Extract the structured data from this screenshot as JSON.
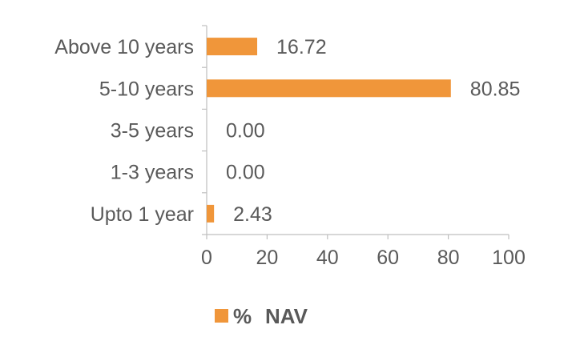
{
  "chart_data": {
    "type": "bar",
    "orientation": "horizontal",
    "categories": [
      "Above 10 years",
      "5-10 years",
      "3-5 years",
      "1-3 years",
      "Upto 1 year"
    ],
    "series": [
      {
        "name": "% NAV",
        "values": [
          16.72,
          80.85,
          0.0,
          0.0,
          2.43
        ],
        "color": "#f0963a"
      }
    ],
    "data_labels": [
      "16.72",
      "80.85",
      "0.00",
      "0.00",
      "2.43"
    ],
    "xlim": [
      0,
      100
    ],
    "xticks": [
      0,
      20,
      40,
      60,
      80,
      100
    ],
    "grid": false,
    "legend": {
      "position": "bottom",
      "label_symbol": "%",
      "label_text": "NAV"
    }
  },
  "colors": {
    "bar": "#f0963a",
    "axis": "#bfbfbf",
    "text": "#5a5a5a"
  }
}
